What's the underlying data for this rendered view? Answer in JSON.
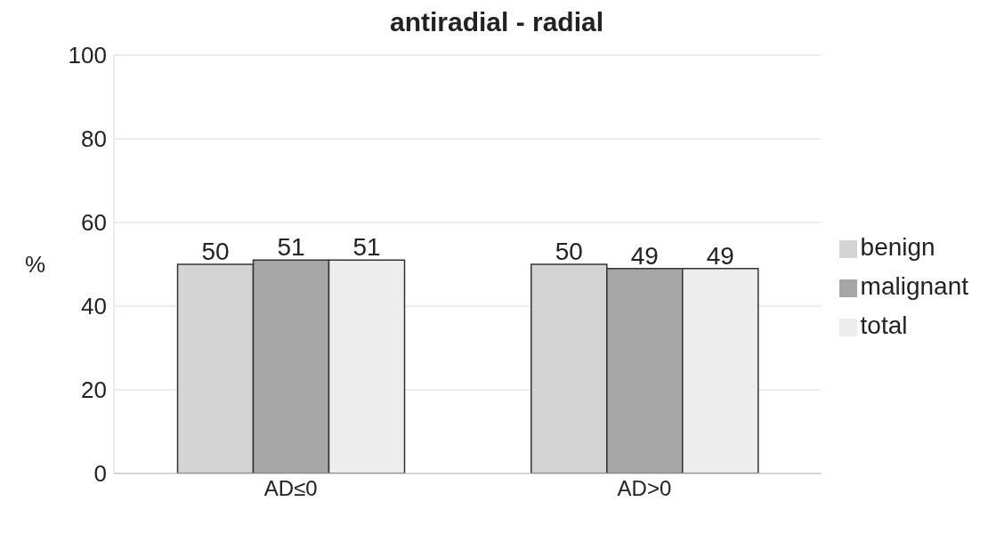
{
  "chart_data": {
    "type": "bar",
    "title": "antiradial - radial",
    "ylabel": "%",
    "categories": [
      "AD≤0",
      "AD>0"
    ],
    "series": [
      {
        "name": "benign",
        "color": "#d4d4d4",
        "values": [
          50,
          50
        ]
      },
      {
        "name": "malignant",
        "color": "#a6a6a6",
        "values": [
          51,
          49
        ]
      },
      {
        "name": "total",
        "color": "#ededed",
        "values": [
          51,
          49
        ]
      }
    ],
    "ylim": [
      0,
      100
    ],
    "yticks": [
      0,
      20,
      40,
      60,
      80,
      100
    ],
    "grid": "y",
    "legend": "right",
    "data_labels": true
  }
}
